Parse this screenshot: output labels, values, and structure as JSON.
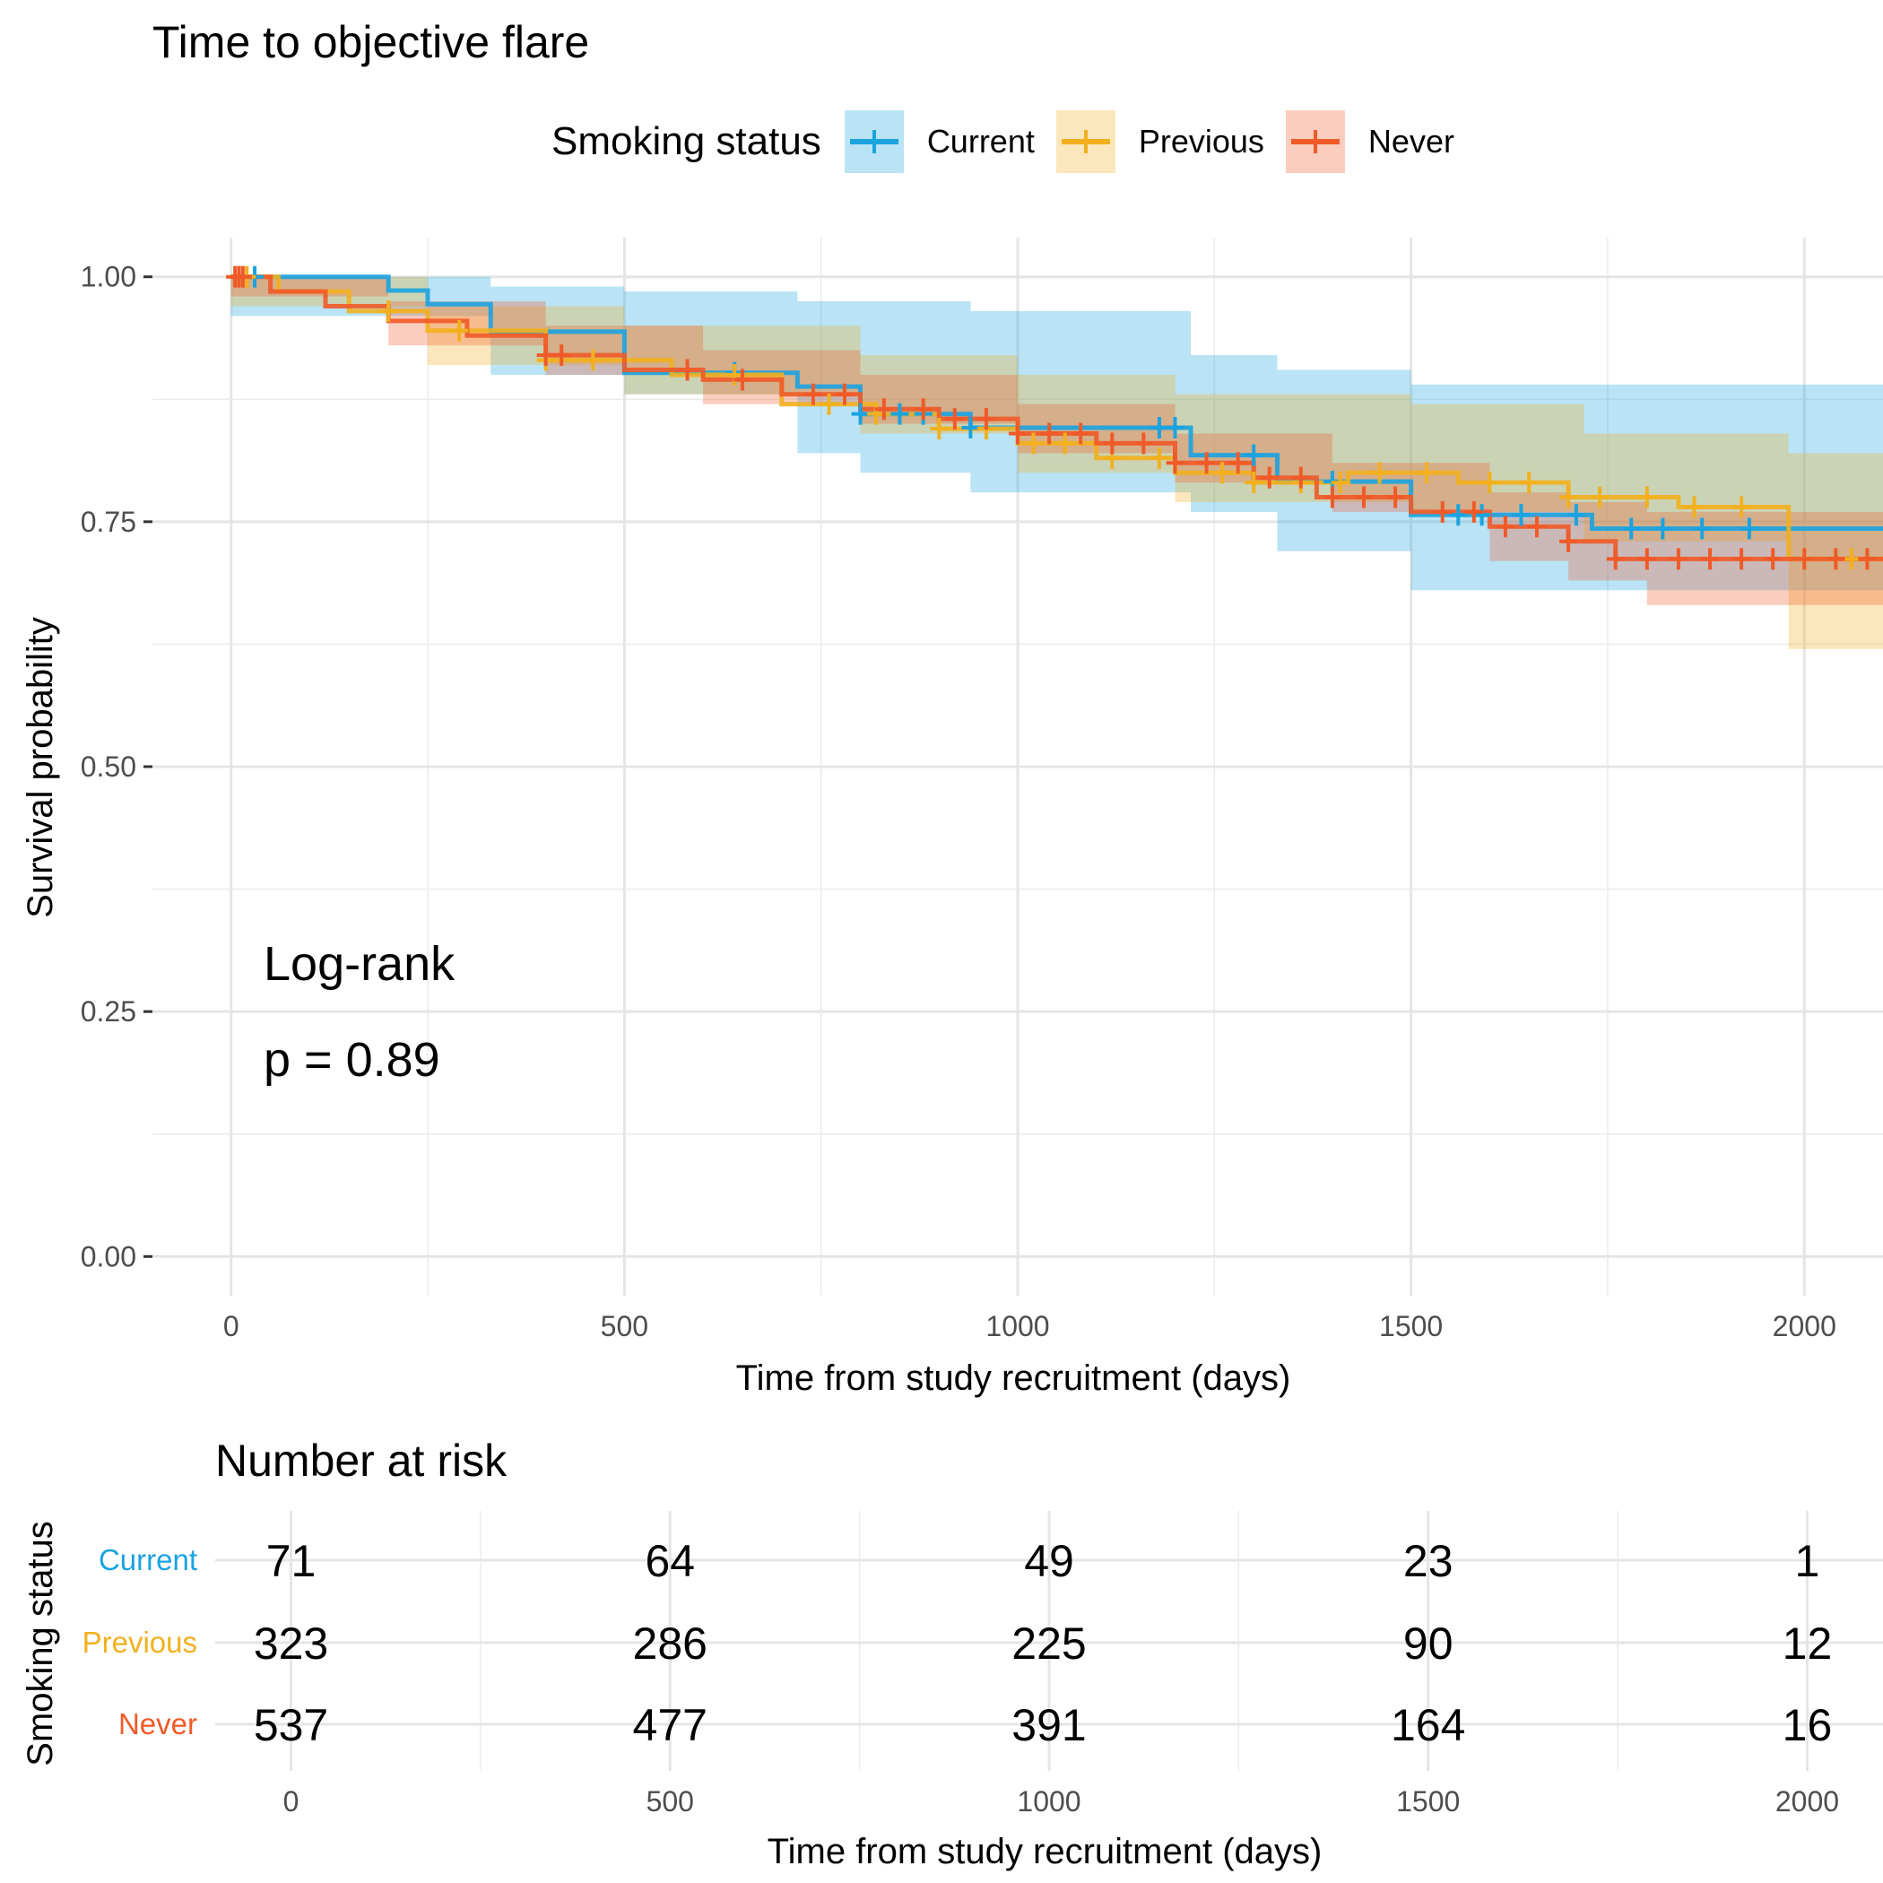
{
  "chart_data": [
    {
      "type": "line",
      "subtype": "kaplan-meier",
      "title": "Time to objective flare",
      "xlabel": "Time from study recruitment (days)",
      "ylabel": "Survival probability",
      "xlim": [
        -100,
        2100
      ],
      "ylim": [
        -0.04,
        1.04
      ],
      "x_ticks": [
        0,
        500,
        1000,
        1500,
        2000
      ],
      "x_tick_labels": [
        "0",
        "500",
        "1000",
        "1500",
        "2000"
      ],
      "y_ticks": [
        0,
        0.25,
        0.5,
        0.75,
        1.0
      ],
      "y_tick_labels": [
        "0.00",
        "0.25",
        "0.50",
        "0.75",
        "1.00"
      ],
      "grid": true,
      "legend": {
        "title": "Smoking status",
        "position": "top",
        "entries": [
          "Current",
          "Previous",
          "Never"
        ]
      },
      "annotation": {
        "test": "Log-rank",
        "p_value": "p = 0.89"
      },
      "series": [
        {
          "name": "Current",
          "color": "#1BA3E0",
          "steps": [
            [
              0,
              1.0
            ],
            [
              200,
              0.986
            ],
            [
              250,
              0.972
            ],
            [
              330,
              0.944
            ],
            [
              500,
              0.902
            ],
            [
              720,
              0.888
            ],
            [
              800,
              0.86
            ],
            [
              940,
              0.846
            ],
            [
              1220,
              0.818
            ],
            [
              1330,
              0.791
            ],
            [
              1500,
              0.757
            ],
            [
              1730,
              0.743
            ],
            [
              2100,
              0.743
            ]
          ],
          "ci_lower": [
            [
              0,
              0.96
            ],
            [
              330,
              0.9
            ],
            [
              500,
              0.88
            ],
            [
              720,
              0.82
            ],
            [
              800,
              0.8
            ],
            [
              940,
              0.78
            ],
            [
              1220,
              0.76
            ],
            [
              1330,
              0.72
            ],
            [
              1500,
              0.68
            ],
            [
              2100,
              0.68
            ]
          ],
          "ci_upper": [
            [
              0,
              1.0
            ],
            [
              330,
              0.99
            ],
            [
              500,
              0.985
            ],
            [
              720,
              0.975
            ],
            [
              940,
              0.965
            ],
            [
              1220,
              0.92
            ],
            [
              1330,
              0.905
            ],
            [
              1500,
              0.89
            ],
            [
              2100,
              0.89
            ]
          ],
          "censor_times": [
            30,
            640,
            800,
            850,
            880,
            940,
            1180,
            1200,
            1300,
            1400,
            1560,
            1590,
            1640,
            1710,
            1780,
            1820,
            1870,
            1930
          ],
          "risk_counts": [
            71,
            64,
            49,
            23,
            1
          ]
        },
        {
          "name": "Previous",
          "color": "#F2B01E",
          "steps": [
            [
              0,
              1.0
            ],
            [
              60,
              0.985
            ],
            [
              150,
              0.965
            ],
            [
              250,
              0.945
            ],
            [
              400,
              0.915
            ],
            [
              560,
              0.9
            ],
            [
              700,
              0.87
            ],
            [
              820,
              0.86
            ],
            [
              900,
              0.845
            ],
            [
              1000,
              0.83
            ],
            [
              1100,
              0.815
            ],
            [
              1200,
              0.8
            ],
            [
              1300,
              0.79
            ],
            [
              1420,
              0.8
            ],
            [
              1560,
              0.79
            ],
            [
              1700,
              0.775
            ],
            [
              1840,
              0.765
            ],
            [
              1980,
              0.712
            ],
            [
              2100,
              0.712
            ]
          ],
          "ci_lower": [
            [
              0,
              0.97
            ],
            [
              250,
              0.91
            ],
            [
              500,
              0.88
            ],
            [
              800,
              0.84
            ],
            [
              1000,
              0.8
            ],
            [
              1200,
              0.77
            ],
            [
              1500,
              0.76
            ],
            [
              1720,
              0.73
            ],
            [
              1980,
              0.62
            ],
            [
              2100,
              0.62
            ]
          ],
          "ci_upper": [
            [
              0,
              1.0
            ],
            [
              250,
              0.97
            ],
            [
              500,
              0.95
            ],
            [
              800,
              0.92
            ],
            [
              1000,
              0.9
            ],
            [
              1200,
              0.88
            ],
            [
              1500,
              0.87
            ],
            [
              1720,
              0.84
            ],
            [
              1980,
              0.82
            ],
            [
              2100,
              0.82
            ]
          ],
          "censor_times": [
            20,
            200,
            290,
            400,
            460,
            640,
            760,
            820,
            900,
            960,
            1020,
            1060,
            1120,
            1180,
            1260,
            1300,
            1360,
            1410,
            1460,
            1520,
            1600,
            1650,
            1700,
            1740,
            1800,
            1860,
            1920,
            2000,
            2060
          ],
          "risk_counts": [
            323,
            286,
            225,
            90,
            12
          ]
        },
        {
          "name": "Never",
          "color": "#F05A28",
          "steps": [
            [
              0,
              1.0
            ],
            [
              50,
              0.985
            ],
            [
              120,
              0.97
            ],
            [
              200,
              0.955
            ],
            [
              300,
              0.94
            ],
            [
              400,
              0.92
            ],
            [
              500,
              0.905
            ],
            [
              600,
              0.895
            ],
            [
              700,
              0.88
            ],
            [
              800,
              0.865
            ],
            [
              900,
              0.855
            ],
            [
              1000,
              0.84
            ],
            [
              1100,
              0.83
            ],
            [
              1200,
              0.81
            ],
            [
              1300,
              0.795
            ],
            [
              1380,
              0.775
            ],
            [
              1500,
              0.76
            ],
            [
              1600,
              0.745
            ],
            [
              1700,
              0.73
            ],
            [
              1760,
              0.712
            ],
            [
              2100,
              0.712
            ]
          ],
          "ci_lower": [
            [
              0,
              0.98
            ],
            [
              200,
              0.93
            ],
            [
              400,
              0.9
            ],
            [
              600,
              0.87
            ],
            [
              800,
              0.85
            ],
            [
              1000,
              0.82
            ],
            [
              1200,
              0.79
            ],
            [
              1400,
              0.76
            ],
            [
              1600,
              0.71
            ],
            [
              1700,
              0.69
            ],
            [
              1800,
              0.665
            ],
            [
              2100,
              0.665
            ]
          ],
          "ci_upper": [
            [
              0,
              1.0
            ],
            [
              200,
              0.975
            ],
            [
              400,
              0.95
            ],
            [
              600,
              0.925
            ],
            [
              800,
              0.9
            ],
            [
              1000,
              0.87
            ],
            [
              1200,
              0.84
            ],
            [
              1400,
              0.81
            ],
            [
              1600,
              0.78
            ],
            [
              1700,
              0.77
            ],
            [
              1800,
              0.76
            ],
            [
              2100,
              0.76
            ]
          ],
          "censor_times": [
            5,
            10,
            15,
            400,
            420,
            580,
            650,
            740,
            780,
            830,
            880,
            920,
            960,
            1000,
            1040,
            1080,
            1120,
            1160,
            1200,
            1240,
            1280,
            1320,
            1360,
            1400,
            1440,
            1480,
            1540,
            1580,
            1620,
            1660,
            1700,
            1760,
            1800,
            1840,
            1880,
            1920,
            1960,
            2000,
            2040,
            2080
          ],
          "risk_counts": [
            537,
            477,
            391,
            164,
            16
          ]
        }
      ]
    },
    {
      "type": "table",
      "title": "Number at risk",
      "ylabel": "Smoking status",
      "xlabel": "Time from study recruitment (days)",
      "x_ticks": [
        0,
        500,
        1000,
        1500,
        2000
      ],
      "x_tick_labels": [
        "0",
        "500",
        "1000",
        "1500",
        "2000"
      ],
      "rows": [
        "Current",
        "Previous",
        "Never"
      ]
    }
  ]
}
